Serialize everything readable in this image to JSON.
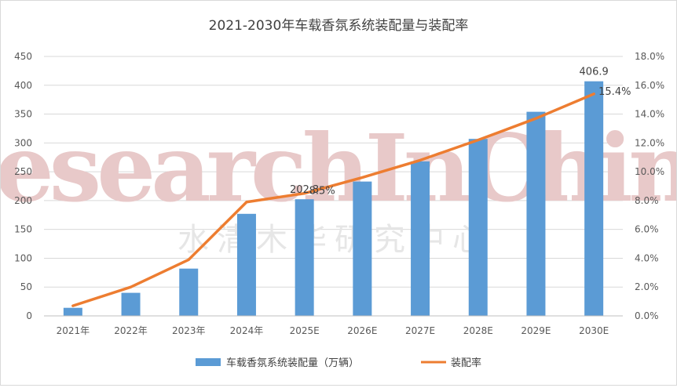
{
  "chart_data": {
    "type": "bar",
    "title": "2021-2030年车载香氛系统装配量与装配率",
    "categories": [
      "2021年",
      "2022年",
      "2023年",
      "2024年",
      "2025E",
      "2026E",
      "2027E",
      "2028E",
      "2029E",
      "2030E"
    ],
    "series": [
      {
        "name": "车载香氛系统装配量（万辆）",
        "type": "bar",
        "axis": "left",
        "color": "#5b9bd5",
        "values": [
          14,
          40,
          82,
          177,
          202.3,
          233,
          268,
          307,
          354,
          406.9
        ]
      },
      {
        "name": "装配率",
        "type": "line",
        "axis": "right",
        "color": "#ed7d31",
        "values": [
          0.7,
          2.0,
          3.9,
          7.9,
          8.5,
          9.6,
          10.8,
          12.2,
          13.7,
          15.4
        ]
      }
    ],
    "y_left": {
      "range": [
        0,
        450
      ],
      "ticks": [
        "0",
        "50",
        "100",
        "150",
        "200",
        "250",
        "300",
        "350",
        "400",
        "450"
      ]
    },
    "y_right": {
      "range": [
        0,
        18
      ],
      "ticks": [
        "0.0%",
        "2.0%",
        "4.0%",
        "6.0%",
        "8.0%",
        "10.0%",
        "12.0%",
        "14.0%",
        "16.0%",
        "18.0%"
      ]
    },
    "data_labels": [
      {
        "series": 0,
        "index": 4,
        "text": "202.3"
      },
      {
        "series": 0,
        "index": 9,
        "text": "406.9"
      },
      {
        "series": 1,
        "index": 4,
        "text": "8.5%"
      },
      {
        "series": 1,
        "index": 9,
        "text": "15.4%"
      }
    ],
    "grid": true,
    "legend_position": "bottom"
  },
  "watermark": {
    "latin": "ResearchInChina",
    "chinese": "水清木华研究中心"
  }
}
